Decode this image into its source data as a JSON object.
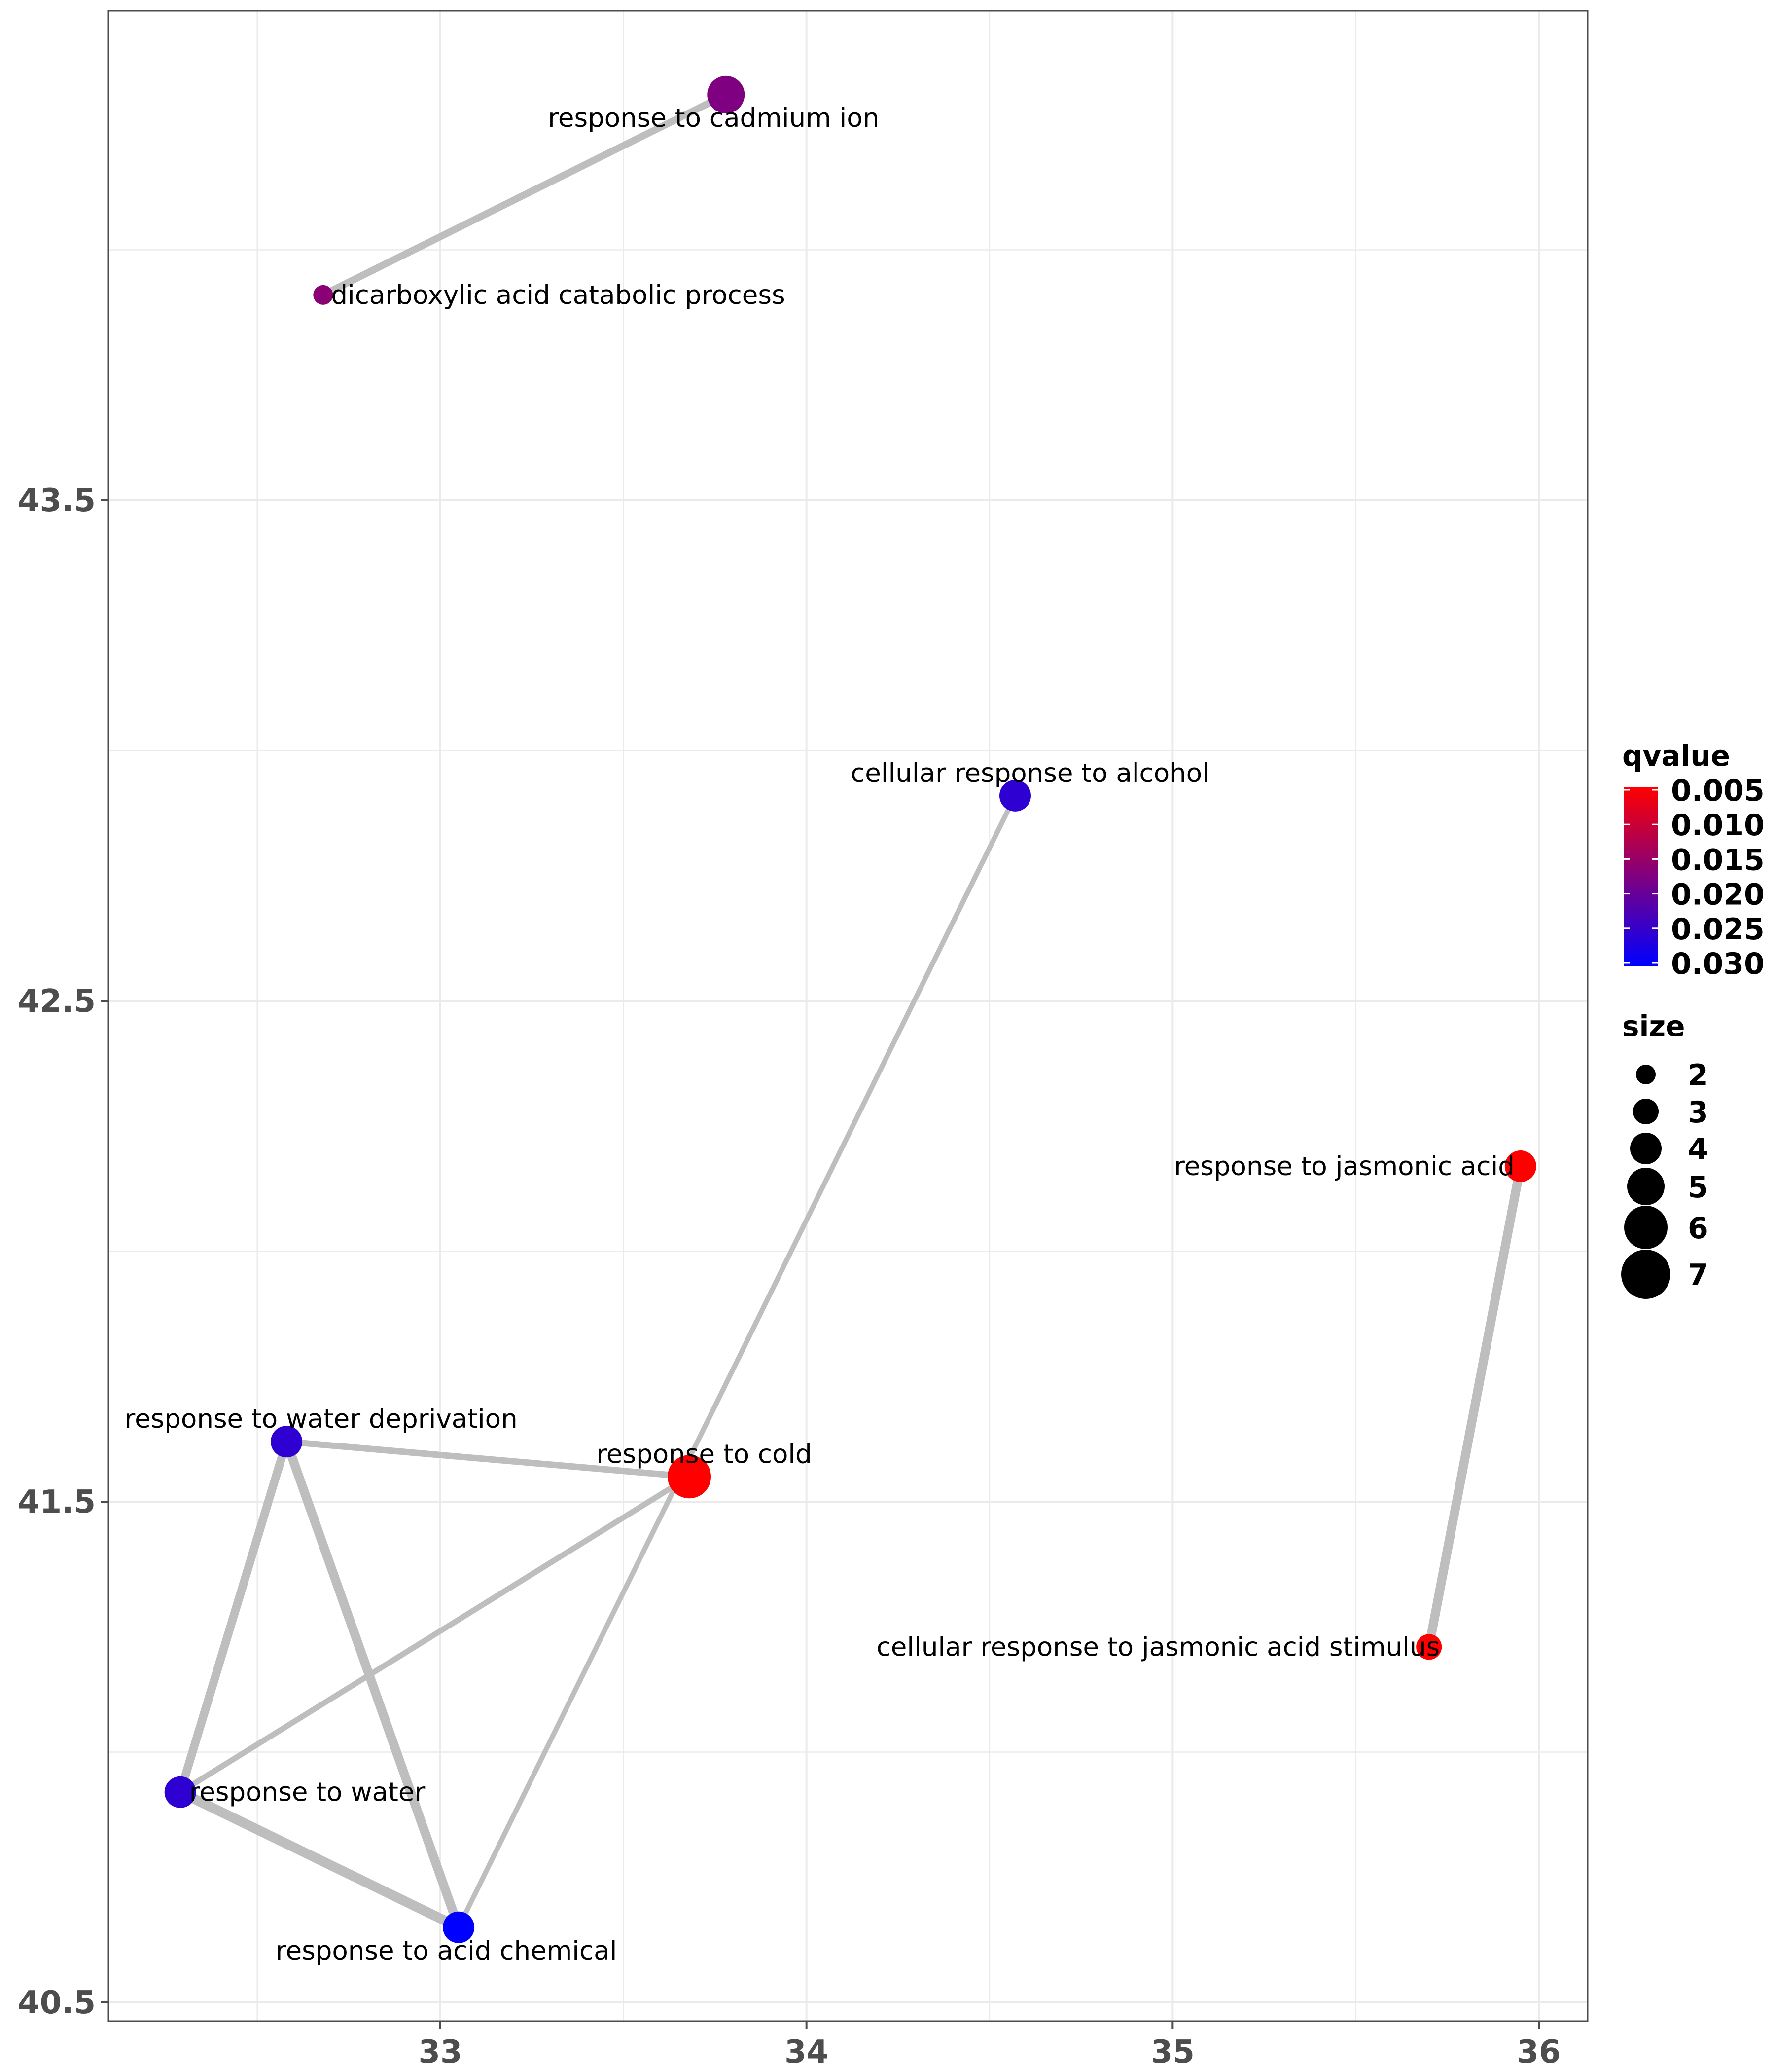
{
  "chart_data": {
    "type": "network",
    "title": "",
    "xlabel": "",
    "ylabel": "",
    "xlim": [
      32.5,
      36.5
    ],
    "ylim": [
      40.5,
      44.5
    ],
    "x_ticks": [
      33,
      34,
      35,
      36
    ],
    "y_ticks": [
      40.5,
      41.5,
      42.5,
      43.5
    ],
    "grid": true,
    "nodes": [
      {
        "id": "cadmium",
        "label": "response to cadmium ion",
        "x": 33.78,
        "y": 44.31,
        "qvalue": 0.0175,
        "size": 5
      },
      {
        "id": "dicarb",
        "label": "dicarboxylic acid catabolic process",
        "x": 32.68,
        "y": 43.91,
        "qvalue": 0.0165,
        "size": 2
      },
      {
        "id": "alcohol",
        "label": "cellular response to alcohol",
        "x": 34.57,
        "y": 42.91,
        "qvalue": 0.0255,
        "size": 4
      },
      {
        "id": "jasmonic",
        "label": "response to jasmonic acid",
        "x": 35.95,
        "y": 42.17,
        "qvalue": 0.005,
        "size": 4
      },
      {
        "id": "waterdep",
        "label": "response to water deprivation",
        "x": 32.58,
        "y": 41.62,
        "qvalue": 0.0255,
        "size": 4
      },
      {
        "id": "cold",
        "label": "response to cold",
        "x": 33.68,
        "y": 41.55,
        "qvalue": 0.005,
        "size": 6
      },
      {
        "id": "jasstim",
        "label": "cellular response to jasmonic acid stimulus",
        "x": 35.7,
        "y": 41.21,
        "qvalue": 0.005,
        "size": 3
      },
      {
        "id": "water",
        "label": "response to water",
        "x": 32.29,
        "y": 40.92,
        "qvalue": 0.0255,
        "size": 4
      },
      {
        "id": "acidchem",
        "label": "response to acid chemical",
        "x": 33.05,
        "y": 40.65,
        "qvalue": 0.03,
        "size": 4
      }
    ],
    "edges": [
      {
        "source": "cadmium",
        "target": "dicarb",
        "weight": 0.6
      },
      {
        "source": "alcohol",
        "target": "acidchem",
        "weight": 0.3
      },
      {
        "source": "jasmonic",
        "target": "jasstim",
        "weight": 0.9
      },
      {
        "source": "waterdep",
        "target": "cold",
        "weight": 0.5
      },
      {
        "source": "waterdep",
        "target": "water",
        "weight": 0.8
      },
      {
        "source": "waterdep",
        "target": "acidchem",
        "weight": 0.9
      },
      {
        "source": "water",
        "target": "cold",
        "weight": 0.4
      },
      {
        "source": "water",
        "target": "acidchem",
        "weight": 1.0
      }
    ],
    "legend": {
      "position": "right",
      "color": {
        "title": "qvalue",
        "labels": [
          "0.005",
          "0.010",
          "0.015",
          "0.020",
          "0.025",
          "0.030"
        ],
        "range": [
          0.005,
          0.03
        ],
        "low_color": "#ff0000",
        "high_color": "#0000ff"
      },
      "size": {
        "title": "size",
        "labels": [
          "2",
          "3",
          "4",
          "5",
          "6",
          "7"
        ],
        "values": [
          2,
          3,
          4,
          5,
          6,
          7
        ]
      }
    }
  }
}
